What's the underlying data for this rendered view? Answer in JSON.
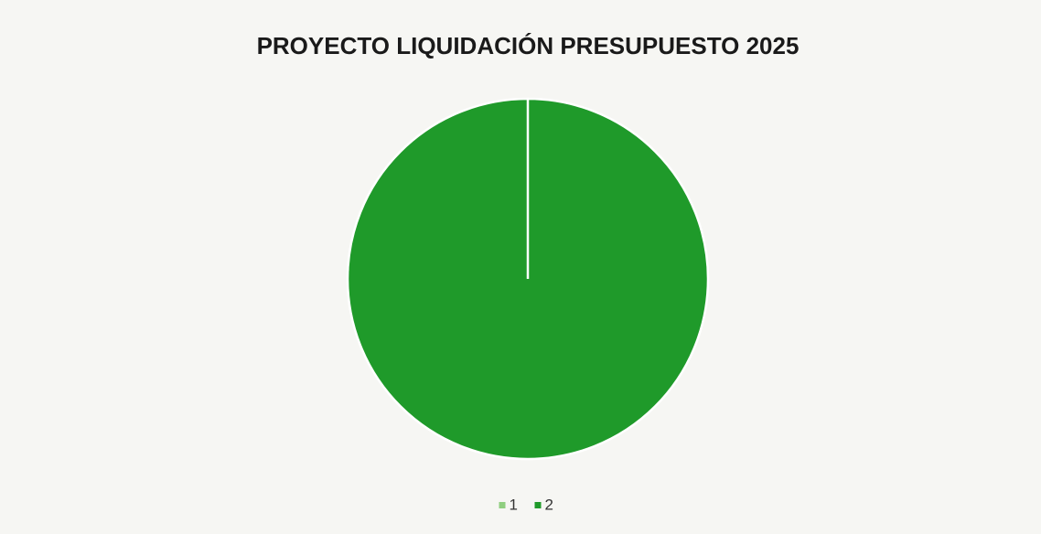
{
  "chart_data": {
    "type": "pie",
    "title": "PROYECTO LIQUIDACIÓN PRESUPUESTO 2025",
    "categories": [
      "1",
      "2"
    ],
    "values": [
      0,
      100
    ],
    "colors": [
      "#8fce7f",
      "#1f9a2a"
    ],
    "legend": "bottom"
  }
}
